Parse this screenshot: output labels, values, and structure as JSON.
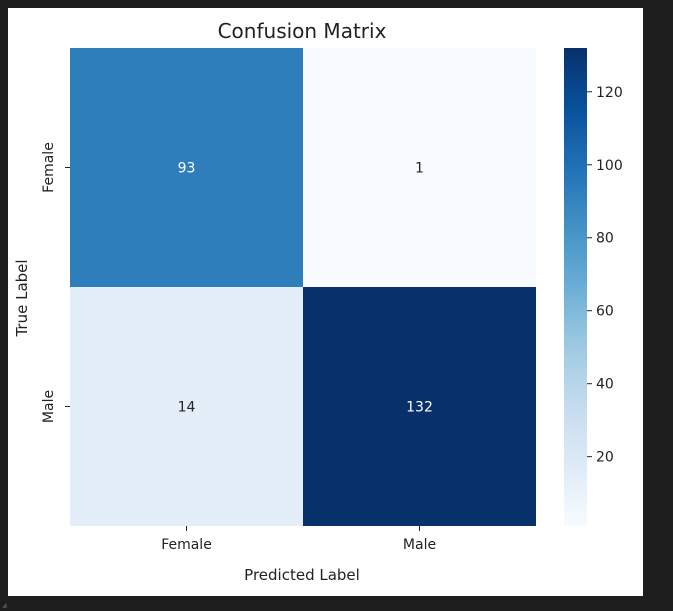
{
  "chart_data": {
    "type": "heatmap",
    "title": "Confusion Matrix",
    "xlabel": "Predicted Label",
    "ylabel": "True Label",
    "x_categories": [
      "Female",
      "Male"
    ],
    "y_categories": [
      "Female",
      "Male"
    ],
    "values": [
      [
        93,
        1
      ],
      [
        14,
        132
      ]
    ],
    "colorbar": {
      "min": 1,
      "max": 132,
      "ticks": [
        20,
        40,
        60,
        80,
        100,
        120
      ],
      "colormap": "Blues"
    },
    "colors": {
      "cmap_low": "#f7fbff",
      "cmap_high": "#08306b",
      "annotation_light": "#ffffff",
      "annotation_dark": "#262626"
    }
  }
}
